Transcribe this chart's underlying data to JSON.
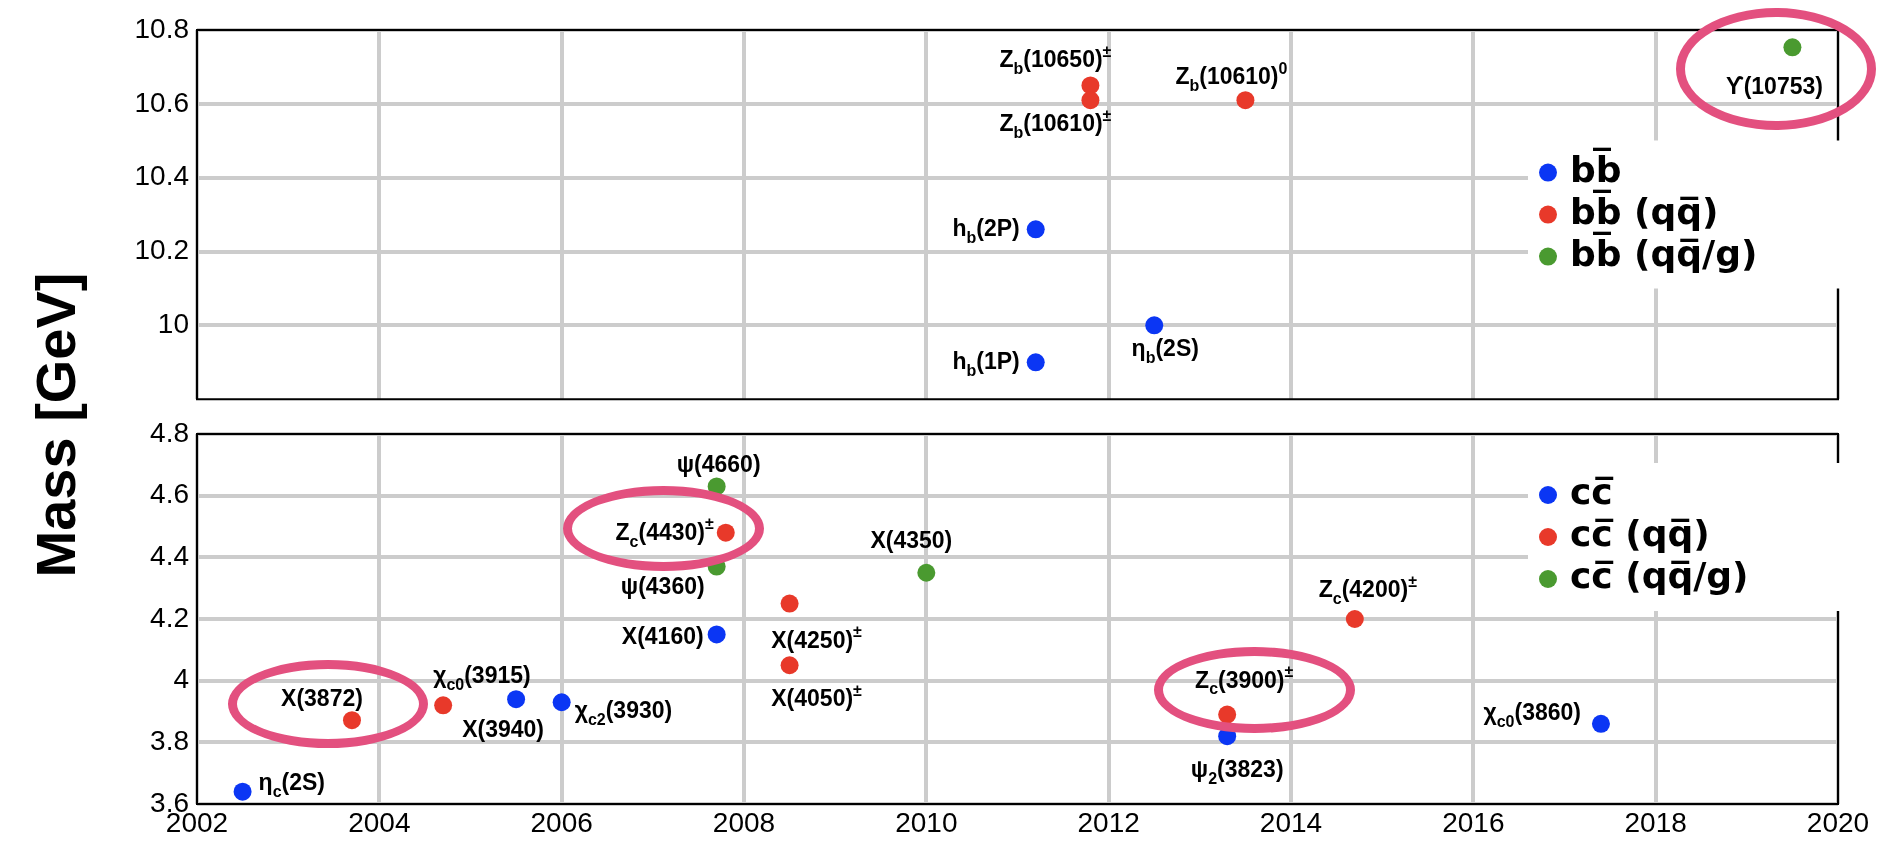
{
  "chart_data": [
    {
      "type": "scatter",
      "ylabel": "Mass [GeV]",
      "xlim": [
        2002,
        2020
      ],
      "xticks": [
        2002,
        2004,
        2006,
        2008,
        2010,
        2012,
        2014,
        2016,
        2018,
        2020
      ],
      "ylim": [
        9.8,
        10.8
      ],
      "yticks": [
        10,
        10.2,
        10.4,
        10.6,
        10.8
      ],
      "tick_labels": "y",
      "grid": true,
      "legend": "right",
      "marker": "circle",
      "series": [
        {
          "name": "bb̅",
          "color": "#0b36f4",
          "x": [
            2011.2,
            2011.2,
            2012.5
          ],
          "values": [
            10.26,
            9.9,
            10.0
          ]
        },
        {
          "name": "bb̅ (qq̅)",
          "color": "#e8392a",
          "x": [
            2011.8,
            2011.8,
            2013.5
          ],
          "values": [
            10.65,
            10.61,
            10.61
          ]
        },
        {
          "name": "bb̅ (qq̅/g)",
          "color": "#4a9a30",
          "x": [
            2019.5
          ],
          "values": [
            10.753
          ]
        }
      ],
      "annotations": [
        {
          "text": "Z$_{b}$(10650)$^{±}$",
          "x": 2011.8,
          "y": 10.65
        },
        {
          "text": "Z$_{b}$(10610)$^{±}$",
          "x": 2011.8,
          "y": 10.61
        },
        {
          "text": "Z$_{b}$(10610)$^{0}$",
          "x": 2013.5,
          "y": 10.61
        },
        {
          "text": "ϒ(10753)",
          "x": 2019.5,
          "y": 10.753
        },
        {
          "text": "h$_{b}$(2P)",
          "x": 2011.2,
          "y": 10.26
        },
        {
          "text": "h$_{b}$(1P)",
          "x": 2011.2,
          "y": 9.9
        },
        {
          "text": "η$_{b}$(2S)",
          "x": 2012.5,
          "y": 10.0
        }
      ]
    },
    {
      "type": "scatter",
      "xlim": [
        2002,
        2020
      ],
      "xticks": [
        2002,
        2004,
        2006,
        2008,
        2010,
        2012,
        2014,
        2016,
        2018,
        2020
      ],
      "ylim": [
        3.6,
        4.8
      ],
      "yticks": [
        3.6,
        3.8,
        4,
        4.2,
        4.4,
        4.6,
        4.8
      ],
      "grid": true,
      "legend": "top right",
      "marker": "circle",
      "series": [
        {
          "name": "cc̅",
          "color": "#0b36f4",
          "x": [
            2002.5,
            2005.5,
            2006.0,
            2007.7,
            2013.3,
            2017.4
          ],
          "values": [
            3.64,
            3.94,
            3.93,
            4.15,
            3.82,
            3.86
          ]
        },
        {
          "name": "cc̅ (qq̅)",
          "color": "#e8392a",
          "x": [
            2003.7,
            2004.7,
            2007.8,
            2008.5,
            2008.5,
            2014.7,
            2013.3
          ],
          "values": [
            3.872,
            3.92,
            4.48,
            4.25,
            4.05,
            4.2,
            3.89
          ]
        },
        {
          "name": "cc̅ (qq̅/g)",
          "color": "#4a9a30",
          "x": [
            2007.7,
            2007.7,
            2010.0
          ],
          "values": [
            4.63,
            4.37,
            4.35
          ]
        }
      ],
      "annotations": [
        {
          "text": "η$_{c}$(2S)",
          "x": 2002.5,
          "y": 3.64
        },
        {
          "text": "X(3872)",
          "x": 2003.7,
          "y": 3.872
        },
        {
          "text": "χ$_{c0}$(3915)",
          "x": 2004.7,
          "y": 3.92
        },
        {
          "text": "X(3940)",
          "x": 2005.5,
          "y": 3.94
        },
        {
          "text": "χ$_{c2}$(3930)",
          "x": 2006.0,
          "y": 3.93
        },
        {
          "text": "ψ(4660)",
          "x": 2007.7,
          "y": 4.63
        },
        {
          "text": "Z$_{c}$(4430)$^{±}$",
          "x": 2007.8,
          "y": 4.48
        },
        {
          "text": "ψ(4360)",
          "x": 2007.7,
          "y": 4.37
        },
        {
          "text": "X(4160)",
          "x": 2007.7,
          "y": 4.15
        },
        {
          "text": "X(4250)$^{±}$",
          "x": 2008.5,
          "y": 4.25
        },
        {
          "text": "X(4050)$^{±}$",
          "x": 2008.5,
          "y": 4.05
        },
        {
          "text": "X(4350)",
          "x": 2010.0,
          "y": 4.35
        },
        {
          "text": "Z$_{c}$(4200)$^{±}$",
          "x": 2014.7,
          "y": 4.2
        },
        {
          "text": "Z$_{c}$(3900)$^{±}$",
          "x": 2013.3,
          "y": 3.89
        },
        {
          "text": "ψ$_{2}$(3823)",
          "x": 2013.3,
          "y": 3.82
        },
        {
          "text": "χ$_{c0}$(3860)",
          "x": 2017.4,
          "y": 3.86
        }
      ]
    }
  ]
}
